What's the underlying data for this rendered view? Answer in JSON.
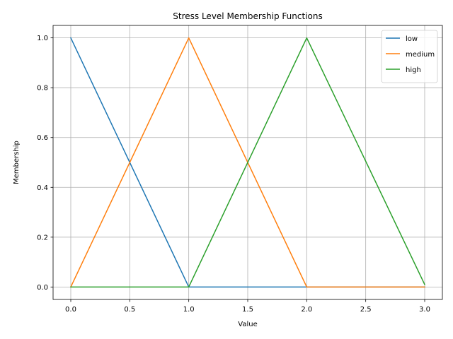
{
  "chart_data": {
    "type": "line",
    "title": "Stress Level Membership Functions",
    "xlabel": "Value",
    "ylabel": "Membership",
    "xlim": [
      -0.15,
      3.15
    ],
    "ylim": [
      -0.05,
      1.05
    ],
    "xticks": [
      0.0,
      0.5,
      1.0,
      1.5,
      2.0,
      2.5,
      3.0
    ],
    "xtick_labels": [
      "0.0",
      "0.5",
      "1.0",
      "1.5",
      "2.0",
      "2.5",
      "3.0"
    ],
    "yticks": [
      0.0,
      0.2,
      0.4,
      0.6,
      0.8,
      1.0
    ],
    "ytick_labels": [
      "0.0",
      "0.2",
      "0.4",
      "0.6",
      "0.8",
      "1.0"
    ],
    "grid": true,
    "legend": "top-right",
    "series": [
      {
        "name": "low",
        "color": "#1f77b4",
        "x": [
          0.0,
          1.0,
          2.0,
          3.0
        ],
        "y": [
          1.0,
          0.0,
          0.0,
          0.0
        ]
      },
      {
        "name": "medium",
        "color": "#ff7f0e",
        "x": [
          0.0,
          1.0,
          2.0,
          3.0
        ],
        "y": [
          0.0,
          1.0,
          0.0,
          0.0
        ]
      },
      {
        "name": "high",
        "color": "#2ca02c",
        "x": [
          0.0,
          1.0,
          2.0,
          3.0
        ],
        "y": [
          0.0,
          0.0,
          1.0,
          0.01
        ]
      }
    ]
  }
}
